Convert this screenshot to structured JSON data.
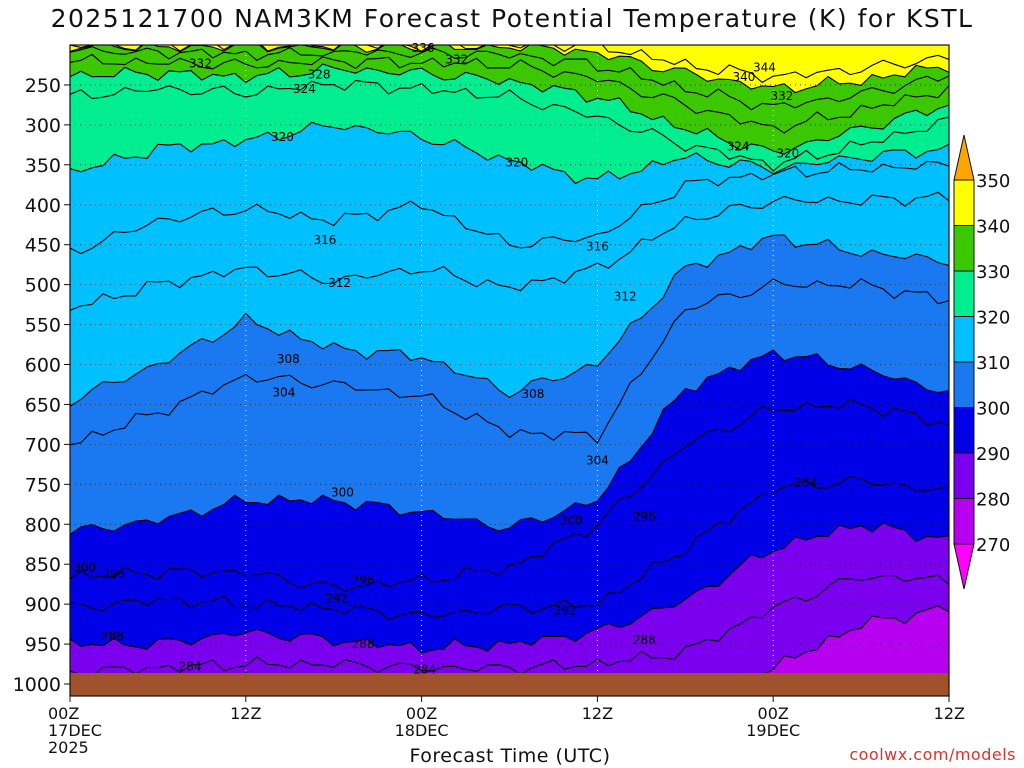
{
  "header": {
    "title": "2025121700 NAM3KM Forecast Potential Temperature (K) for KSTL",
    "credit": "coolwx.com/models"
  },
  "chart_data": {
    "type": "heatmap",
    "title": "2025121700 NAM3KM Forecast Potential Temperature (K) for KSTL",
    "xlabel": "Forecast Time (UTC)",
    "ylabel": "Pressure (hPa)",
    "x_ticks": [
      {
        "hour": 0,
        "lines": [
          "00Z",
          "17DEC",
          "2025"
        ]
      },
      {
        "hour": 12,
        "lines": [
          "12Z"
        ]
      },
      {
        "hour": 24,
        "lines": [
          "00Z",
          "18DEC"
        ]
      },
      {
        "hour": 36,
        "lines": [
          "12Z"
        ]
      },
      {
        "hour": 48,
        "lines": [
          "00Z",
          "19DEC"
        ]
      },
      {
        "hour": 60,
        "lines": [
          "12Z"
        ]
      }
    ],
    "x_range_hours": [
      0,
      60
    ],
    "y_ticks": [
      250,
      300,
      350,
      400,
      450,
      500,
      550,
      600,
      650,
      700,
      750,
      800,
      850,
      900,
      950,
      1000
    ],
    "y_range_hpa": [
      200,
      1015
    ],
    "colorbar": {
      "labels": [
        350,
        340,
        330,
        320,
        310,
        300,
        290,
        280,
        270
      ],
      "bins": [
        {
          "lo": 350,
          "hi": 360,
          "color": "#ffa500"
        },
        {
          "lo": 340,
          "hi": 350,
          "color": "#ffff00"
        },
        {
          "lo": 330,
          "hi": 340,
          "color": "#3cc800"
        },
        {
          "lo": 320,
          "hi": 330,
          "color": "#00ee90"
        },
        {
          "lo": 310,
          "hi": 320,
          "color": "#00c0ff"
        },
        {
          "lo": 300,
          "hi": 310,
          "color": "#1a78f0"
        },
        {
          "lo": 290,
          "hi": 300,
          "color": "#0000e8"
        },
        {
          "lo": 280,
          "hi": 290,
          "color": "#7a00ee"
        },
        {
          "lo": 270,
          "hi": 280,
          "color": "#b800f0"
        },
        {
          "lo": 260,
          "hi": 270,
          "color": "#ff00ff"
        }
      ]
    },
    "isotherm_profiles": [
      {
        "theta": 344,
        "hours": [
          0,
          6,
          12,
          18,
          24,
          30,
          36,
          42,
          48,
          54,
          60
        ],
        "pressure": [
          200,
          200,
          200,
          200,
          200,
          200,
          200,
          225,
          240,
          230,
          215
        ]
      },
      {
        "theta": 340,
        "hours": [
          0,
          6,
          12,
          18,
          24,
          30,
          36,
          42,
          48,
          54,
          60
        ],
        "pressure": [
          200,
          200,
          200,
          200,
          200,
          200,
          210,
          235,
          255,
          245,
          225
        ]
      },
      {
        "theta": 336,
        "hours": [
          0,
          6,
          12,
          18,
          24,
          30,
          36,
          42,
          48,
          54,
          60
        ],
        "pressure": [
          205,
          208,
          212,
          208,
          210,
          212,
          225,
          255,
          278,
          262,
          238
        ]
      },
      {
        "theta": 332,
        "hours": [
          0,
          6,
          12,
          18,
          24,
          30,
          36,
          42,
          48,
          54,
          60
        ],
        "pressure": [
          220,
          222,
          225,
          220,
          222,
          225,
          242,
          275,
          305,
          282,
          255
        ]
      },
      {
        "theta": 328,
        "hours": [
          0,
          6,
          12,
          18,
          24,
          30,
          36,
          42,
          48,
          54,
          60
        ],
        "pressure": [
          238,
          235,
          240,
          230,
          235,
          245,
          265,
          305,
          335,
          305,
          275
        ]
      },
      {
        "theta": 324,
        "hours": [
          0,
          6,
          12,
          18,
          24,
          30,
          36,
          42,
          48,
          54,
          60
        ],
        "pressure": [
          265,
          255,
          260,
          248,
          255,
          265,
          290,
          325,
          350,
          325,
          295
        ]
      },
      {
        "theta": 320,
        "hours": [
          0,
          6,
          12,
          18,
          24,
          30,
          36,
          42,
          48,
          54,
          60
        ],
        "pressure": [
          360,
          330,
          320,
          300,
          315,
          345,
          370,
          340,
          355,
          340,
          330
        ]
      },
      {
        "theta": 316,
        "hours": [
          0,
          6,
          12,
          18,
          24,
          30,
          36,
          42,
          48,
          54,
          60
        ],
        "pressure": [
          460,
          420,
          405,
          420,
          400,
          450,
          440,
          375,
          360,
          355,
          350
        ]
      },
      {
        "theta": 312,
        "hours": [
          0,
          6,
          12,
          18,
          24,
          30,
          36,
          42,
          48,
          54,
          60
        ],
        "pressure": [
          530,
          500,
          480,
          495,
          480,
          505,
          480,
          420,
          395,
          395,
          390
        ]
      },
      {
        "theta": 308,
        "hours": [
          0,
          6,
          12,
          18,
          24,
          30,
          36,
          42,
          48,
          54,
          60
        ],
        "pressure": [
          645,
          600,
          545,
          580,
          590,
          635,
          600,
          480,
          440,
          460,
          470
        ]
      },
      {
        "theta": 304,
        "hours": [
          0,
          6,
          12,
          18,
          24,
          30,
          36,
          42,
          48,
          54,
          60
        ],
        "pressure": [
          700,
          660,
          615,
          625,
          640,
          685,
          690,
          530,
          500,
          500,
          520
        ]
      },
      {
        "theta": 300,
        "hours": [
          0,
          6,
          12,
          18,
          24,
          30,
          36,
          42,
          48,
          54,
          60
        ],
        "pressure": [
          810,
          795,
          770,
          770,
          785,
          805,
          770,
          630,
          585,
          605,
          635
        ]
      },
      {
        "theta": 296,
        "hours": [
          0,
          6,
          12,
          18,
          24,
          30,
          36,
          42,
          48,
          54,
          60
        ],
        "pressure": [
          865,
          860,
          860,
          880,
          870,
          855,
          800,
          700,
          655,
          650,
          675
        ]
      },
      {
        "theta": 292,
        "hours": [
          0,
          6,
          12,
          18,
          24,
          30,
          36,
          42,
          48,
          54,
          60
        ],
        "pressure": [
          905,
          895,
          900,
          905,
          915,
          905,
          900,
          830,
          755,
          745,
          760
        ]
      },
      {
        "theta": 288,
        "hours": [
          0,
          6,
          12,
          18,
          24,
          30,
          36,
          42,
          48,
          54,
          60
        ],
        "pressure": [
          950,
          950,
          935,
          945,
          955,
          950,
          935,
          895,
          830,
          800,
          820
        ]
      },
      {
        "theta": 284,
        "hours": [
          0,
          6,
          12,
          18,
          24,
          30,
          36,
          42,
          48,
          54,
          60
        ],
        "pressure": [
          985,
          980,
          975,
          975,
          980,
          980,
          975,
          960,
          905,
          865,
          870
        ]
      },
      {
        "theta": 280,
        "hours": [
          0,
          6,
          12,
          18,
          24,
          30,
          36,
          42,
          48,
          54,
          60
        ],
        "pressure": [
          1015,
          1015,
          990,
          1010,
          1015,
          1015,
          1015,
          1015,
          980,
          925,
          905
        ]
      }
    ],
    "contour_labels": [
      {
        "value": "336",
        "hour": 24.1,
        "p": 204
      },
      {
        "value": "332",
        "hour": 8.9,
        "p": 223
      },
      {
        "value": "332",
        "hour": 26.4,
        "p": 218
      },
      {
        "value": "328",
        "hour": 17.0,
        "p": 237
      },
      {
        "value": "324",
        "hour": 16.0,
        "p": 255
      },
      {
        "value": "320",
        "hour": 14.5,
        "p": 315
      },
      {
        "value": "320",
        "hour": 30.5,
        "p": 347
      },
      {
        "value": "316",
        "hour": 17.4,
        "p": 444
      },
      {
        "value": "316",
        "hour": 36.0,
        "p": 452
      },
      {
        "value": "312",
        "hour": 18.4,
        "p": 498
      },
      {
        "value": "312",
        "hour": 37.9,
        "p": 515
      },
      {
        "value": "308",
        "hour": 14.9,
        "p": 593
      },
      {
        "value": "308",
        "hour": 31.6,
        "p": 637
      },
      {
        "value": "304",
        "hour": 14.6,
        "p": 635
      },
      {
        "value": "304",
        "hour": 36.0,
        "p": 720
      },
      {
        "value": "300",
        "hour": 18.6,
        "p": 760
      },
      {
        "value": "300",
        "hour": 34.2,
        "p": 795
      },
      {
        "value": "300",
        "hour": 1.0,
        "p": 854
      },
      {
        "value": "296",
        "hour": 3.0,
        "p": 862
      },
      {
        "value": "296",
        "hour": 20.0,
        "p": 870
      },
      {
        "value": "296",
        "hour": 39.2,
        "p": 790
      },
      {
        "value": "292",
        "hour": 18.2,
        "p": 893
      },
      {
        "value": "292",
        "hour": 33.8,
        "p": 908
      },
      {
        "value": "288",
        "hour": 2.9,
        "p": 940
      },
      {
        "value": "288",
        "hour": 20.0,
        "p": 950
      },
      {
        "value": "288",
        "hour": 39.2,
        "p": 945
      },
      {
        "value": "284",
        "hour": 8.2,
        "p": 978
      },
      {
        "value": "284",
        "hour": 24.2,
        "p": 982
      },
      {
        "value": "284",
        "hour": 50.2,
        "p": 748
      },
      {
        "value": "344",
        "hour": 47.4,
        "p": 228
      },
      {
        "value": "340",
        "hour": 46.0,
        "p": 240
      },
      {
        "value": "332",
        "hour": 48.6,
        "p": 264
      },
      {
        "value": "324",
        "hour": 45.6,
        "p": 327
      },
      {
        "value": "320",
        "hour": 49.0,
        "p": 336
      }
    ]
  }
}
